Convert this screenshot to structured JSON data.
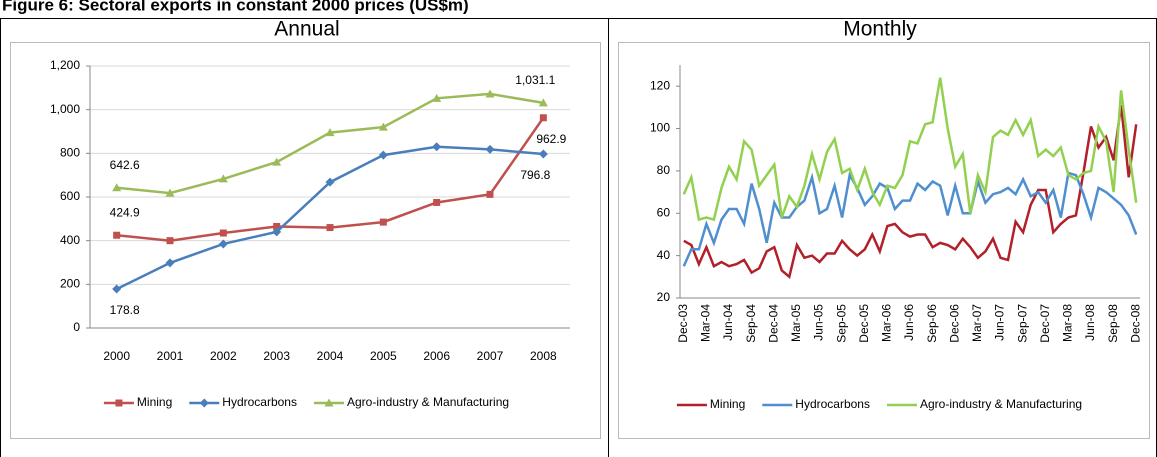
{
  "title": "Figure 6: Sectoral exports in constant 2000 prices (US$m)",
  "chart_data": [
    {
      "type": "line",
      "title": "Annual",
      "categories": [
        "2000",
        "2001",
        "2002",
        "2003",
        "2004",
        "2005",
        "2006",
        "2007",
        "2008"
      ],
      "ylim": [
        0,
        1200
      ],
      "yticks": [
        0,
        200,
        400,
        600,
        800,
        {
          "value": 1000,
          "label": "1,000"
        },
        {
          "value": 1200,
          "label": "1,200"
        }
      ],
      "grid": true,
      "legend": "bottom",
      "series": [
        {
          "name": "Mining",
          "color": "#c0504d",
          "marker": "square",
          "values": [
            424.9,
            400,
            435,
            465,
            460,
            485,
            575,
            612,
            962.9
          ],
          "value_labels": [
            "424.9",
            null,
            null,
            null,
            null,
            null,
            null,
            null,
            "962.9"
          ]
        },
        {
          "name": "Hydrocarbons",
          "color": "#4a7ebb",
          "marker": "diamond",
          "values": [
            178.8,
            298,
            385,
            440,
            668,
            792,
            830,
            818,
            796.8
          ],
          "value_labels": [
            "178.8",
            null,
            null,
            null,
            null,
            null,
            null,
            null,
            "796.8"
          ]
        },
        {
          "name": "Agro-industry & Manufacturing",
          "color": "#9bbb59",
          "marker": "triangle",
          "values": [
            642.6,
            618,
            683,
            760,
            895,
            920,
            1052,
            1072,
            1031.1
          ],
          "value_labels": [
            "642.6",
            null,
            null,
            null,
            null,
            null,
            null,
            null,
            "1,031.1"
          ]
        }
      ]
    },
    {
      "type": "line",
      "title": "Monthly",
      "categories": [
        "Dec-03",
        null,
        null,
        "Mar-04",
        null,
        null,
        "Jun-04",
        null,
        null,
        "Sep-04",
        null,
        null,
        "Dec-04",
        null,
        null,
        "Mar-05",
        null,
        null,
        "Jun-05",
        null,
        null,
        "Sep-05",
        null,
        null,
        "Dec-05",
        null,
        null,
        "Mar-06",
        null,
        null,
        "Jun-06",
        null,
        null,
        "Sep-06",
        null,
        null,
        "Dec-06",
        null,
        null,
        "Mar-07",
        null,
        null,
        "Jun-07",
        null,
        null,
        "Sep-07",
        null,
        null,
        "Dec-07",
        null,
        null,
        "Mar-08",
        null,
        null,
        "Jun-08",
        null,
        null,
        "Sep-08",
        null,
        null,
        "Dec-08"
      ],
      "ylim": [
        20,
        130
      ],
      "yticks": [
        20,
        40,
        60,
        80,
        100,
        120
      ],
      "grid": false,
      "legend": "bottom",
      "rotate_labels": true,
      "series": [
        {
          "name": "Mining",
          "color": "#b2202a",
          "values": [
            47,
            45,
            36,
            44,
            35,
            37,
            35,
            36,
            38,
            32,
            34,
            42,
            44,
            33,
            30,
            45,
            39,
            40,
            37,
            41,
            41,
            47,
            43,
            40,
            43,
            50,
            42,
            54,
            55,
            51,
            49,
            50,
            50,
            44,
            46,
            45,
            43,
            48,
            44,
            39,
            42,
            48,
            39,
            38,
            56,
            51,
            64,
            71,
            71,
            51,
            55,
            58,
            59,
            79,
            101,
            91,
            96,
            85,
            111,
            77,
            102
          ]
        },
        {
          "name": "Hydrocarbons",
          "color": "#4f8fcf",
          "values": [
            35,
            43,
            43,
            55,
            46,
            57,
            62,
            62,
            55,
            74,
            62,
            46,
            65,
            58,
            58,
            63,
            66,
            77,
            60,
            62,
            73,
            58,
            78,
            72,
            64,
            68,
            74,
            72,
            62,
            66,
            66,
            74,
            71,
            75,
            73,
            59,
            73,
            60,
            60,
            75,
            65,
            69,
            70,
            72,
            69,
            76,
            68,
            70,
            65,
            71,
            58,
            79,
            78,
            69,
            58,
            72,
            70,
            67,
            64,
            59,
            50
          ]
        },
        {
          "name": "Agro-industry & Manufacturing",
          "color": "#92d050",
          "values": [
            69,
            77,
            57,
            58,
            57,
            72,
            82,
            76,
            94,
            90,
            73,
            78,
            83,
            58,
            68,
            63,
            73,
            88,
            76,
            89,
            95,
            79,
            81,
            71,
            81,
            70,
            64,
            73,
            72,
            78,
            94,
            93,
            102,
            103,
            124,
            100,
            82,
            88,
            60,
            78,
            70,
            96,
            99,
            97,
            104,
            97,
            104,
            87,
            90,
            87,
            91,
            78,
            76,
            79,
            80,
            101,
            94,
            70,
            118,
            90,
            65
          ]
        }
      ]
    }
  ]
}
